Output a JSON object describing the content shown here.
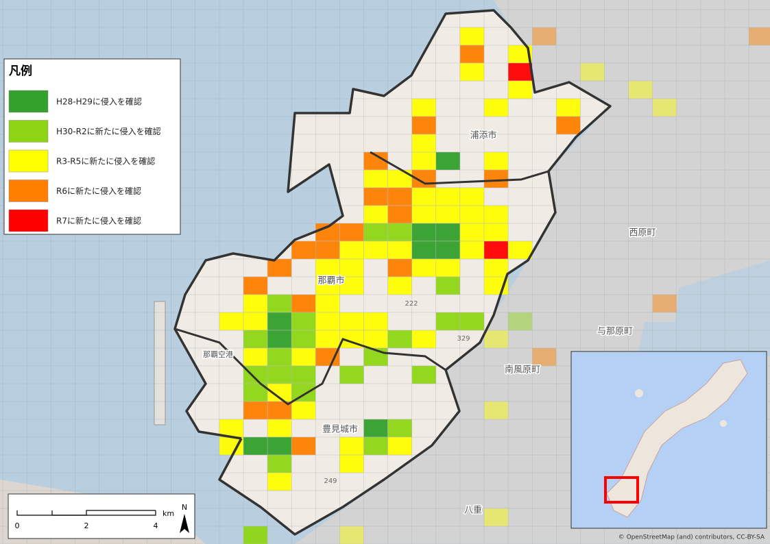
{
  "legend": {
    "title": "凡例",
    "items": [
      {
        "label": "H28-H29に侵入を確認",
        "color": "#33a02c"
      },
      {
        "label": "H30-R2に新たに侵入を確認",
        "color": "#8ed615"
      },
      {
        "label": "R3-R5に新たに侵入を確認",
        "color": "#ffff00"
      },
      {
        "label": "R6に新たに侵入を確認",
        "color": "#ff8000"
      },
      {
        "label": "R7に新たに侵入を確認",
        "color": "#ff0000"
      }
    ]
  },
  "place_labels": [
    "浦添市",
    "那覇市",
    "豊見城市",
    "西原町",
    "与那原町",
    "南風原町",
    "那覇空港",
    "八重"
  ],
  "road_labels": [
    "222",
    "329",
    "249"
  ],
  "scale_bar": {
    "ticks": [
      "0",
      "2",
      "4"
    ],
    "unit": "km"
  },
  "north_arrow": "N",
  "attribution": "© OpenStreetMap (and) contributors, CC-BY-SA"
}
